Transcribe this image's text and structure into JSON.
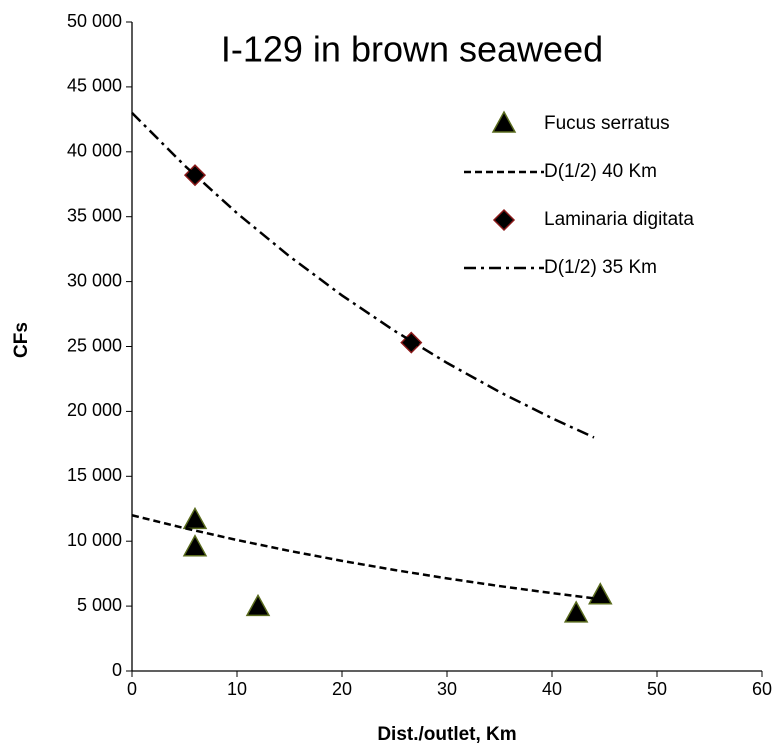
{
  "chart_data": {
    "type": "scatter",
    "title": "I-129 in brown seaweed",
    "x_label": "Dist./outlet, Km",
    "y_label": "CFs",
    "xlim": [
      0,
      60
    ],
    "xticks": [
      0,
      10,
      20,
      30,
      40,
      50,
      60
    ],
    "ylim": [
      0,
      50000
    ],
    "yticks": [
      {
        "value": 0,
        "label": "0"
      },
      {
        "value": 5000,
        "label": "5 000"
      },
      {
        "value": 10000,
        "label": "10 000"
      },
      {
        "value": 15000,
        "label": "15 000"
      },
      {
        "value": 20000,
        "label": "20 000"
      },
      {
        "value": 25000,
        "label": "25 000"
      },
      {
        "value": 30000,
        "label": "30 000"
      },
      {
        "value": 35000,
        "label": "35 000"
      },
      {
        "value": 40000,
        "label": "40 000"
      },
      {
        "value": 45000,
        "label": "45 000"
      },
      {
        "value": 50000,
        "label": "50 000"
      }
    ],
    "grid": false,
    "legend": "upper right",
    "series": [
      {
        "name": "Fucus serratus",
        "mode": "markers",
        "marker": "triangle",
        "color": "#000000",
        "edge_color": "#5a6b1e",
        "x": [
          6,
          6,
          12,
          42.3,
          44.6
        ],
        "values": [
          11600,
          9500,
          4900,
          4400,
          5800
        ]
      },
      {
        "name": "D(1/2) 40 Km",
        "mode": "line",
        "dash": "dashed",
        "color": "#000000",
        "x": [
          0,
          5,
          10,
          15,
          20,
          25,
          30,
          35,
          40,
          44
        ],
        "values": [
          12000,
          11004,
          10091,
          9253,
          8485,
          7781,
          7135,
          6543,
          6000,
          5598
        ]
      },
      {
        "name": "Laminaria digitata",
        "mode": "markers",
        "marker": "diamond",
        "color": "#000000",
        "edge_color": "#8b1a1a",
        "x": [
          6,
          26.6
        ],
        "values": [
          38200,
          25300
        ]
      },
      {
        "name": "D(1/2) 35 Km",
        "mode": "line",
        "dash": "dashdot",
        "color": "#000000",
        "x": [
          0,
          5,
          10,
          15,
          20,
          25,
          30,
          35,
          40,
          44
        ],
        "values": [
          43000,
          38946,
          35273,
          31948,
          28935,
          26208,
          23738,
          21500,
          19476,
          17991
        ]
      }
    ]
  }
}
